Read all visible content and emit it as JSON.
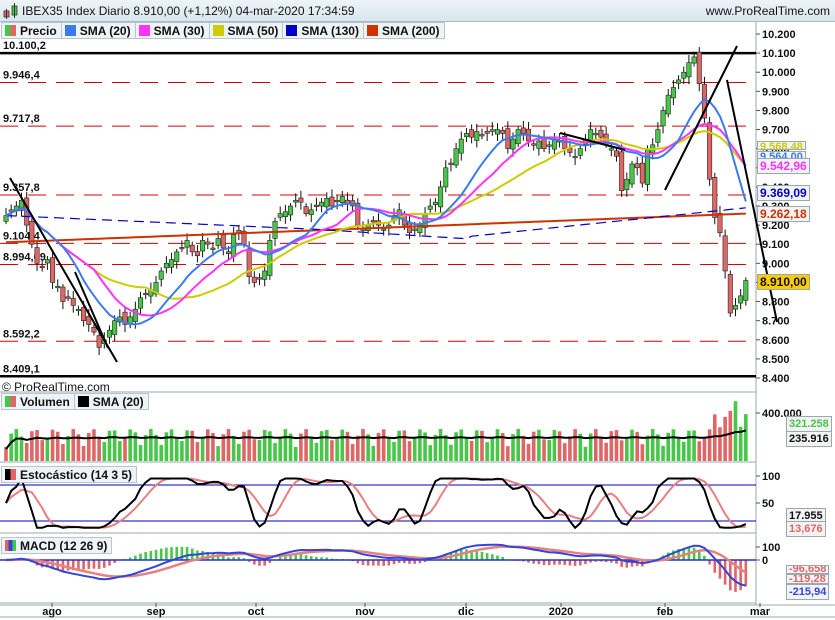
{
  "header": {
    "title": "IBEX35 Index Diario 8.910,00 (+1,12%) 04-mar-2020 17:34:59",
    "site": "www.ProRealTime.com"
  },
  "price_legend": [
    {
      "label": "Precio",
      "color": "split"
    },
    {
      "label": "SMA (20)",
      "color": "#3b7bf0"
    },
    {
      "label": "SMA (30)",
      "color": "#ff33ff"
    },
    {
      "label": "SMA (50)",
      "color": "#cccc00"
    },
    {
      "label": "SMA (130)",
      "color": "#0000cc"
    },
    {
      "label": "SMA (200)",
      "color": "#cc3300"
    }
  ],
  "copyright": "© ProRealTime.com",
  "volume_legend": [
    {
      "label": "Volumen",
      "color": "split"
    },
    {
      "label": "SMA (20)",
      "color": "#000000"
    }
  ],
  "stoch_legend": {
    "label": "Estocástico (14 3 5)"
  },
  "macd_legend": {
    "label": "MACD (12 26 9)"
  },
  "badges": {
    "last_price": "8.910,00",
    "sma50": "9.568,48",
    "sma20": "9.564,00",
    "sma30": "9.542,96",
    "sma130": "9.369,09",
    "sma200": "9.262,18",
    "volume": "321.258",
    "volume_sma": "235.916",
    "stoch_k": "17.955",
    "stoch_d": "13,676",
    "macd_hist": "-96,658",
    "macd_signal": "-119,28",
    "macd": "-215,94"
  },
  "chart_data": [
    {
      "type": "candlestick",
      "title": "IBEX35 Index Diario",
      "ylim": [
        8400,
        10200
      ],
      "y_ticks": [
        "10.200",
        "10.100",
        "10.000",
        "9.900",
        "9.800",
        "9.700",
        "9.600",
        "9.500",
        "9.400",
        "9.300",
        "9.200",
        "9.100",
        "9.000",
        "8.900",
        "8.800",
        "8.700",
        "8.600",
        "8.500",
        "8.400"
      ],
      "x_ticks": [
        "ago",
        "sep",
        "oct",
        "nov",
        "dic",
        "2020",
        "feb",
        "mar"
      ],
      "horizontal_levels": [
        {
          "label": "10.100,2",
          "value": 10100.2,
          "style": "solid-black"
        },
        {
          "label": "9.946,4",
          "value": 9946.4,
          "style": "dashed-red"
        },
        {
          "label": "9.717,8",
          "value": 9717.8,
          "style": "dashed-red"
        },
        {
          "label": "9.357,8",
          "value": 9357.8,
          "style": "dashed-red"
        },
        {
          "label": "9.104,4",
          "value": 9104.4,
          "style": "dashed-red"
        },
        {
          "label": "8.994,09",
          "value": 8994.09,
          "style": "dashed-red"
        },
        {
          "label": "8.592,2",
          "value": 8592.2,
          "style": "dashed-red"
        },
        {
          "label": "8.409,1",
          "value": 8409.1,
          "style": "solid-black"
        }
      ],
      "close_series": [
        9250,
        9280,
        9300,
        9330,
        9200,
        9100,
        9000,
        8980,
        9020,
        8900,
        8880,
        8800,
        8820,
        8780,
        8760,
        8700,
        8680,
        8640,
        8560,
        8600,
        8650,
        8700,
        8720,
        8680,
        8720,
        8760,
        8820,
        8840,
        8860,
        8900,
        8960,
        9000,
        9020,
        9060,
        9080,
        9120,
        9060,
        9040,
        9120,
        9100,
        9080,
        9130,
        9080,
        9050,
        9150,
        9160,
        9100,
        8930,
        8900,
        8920,
        8960,
        9120,
        9220,
        9260,
        9270,
        9300,
        9330,
        9320,
        9260,
        9280,
        9300,
        9320,
        9340,
        9300,
        9330,
        9350,
        9310,
        9300,
        9200,
        9180,
        9200,
        9220,
        9200,
        9180,
        9200,
        9250,
        9280,
        9200,
        9160,
        9180,
        9200,
        9260,
        9300,
        9320,
        9400,
        9500,
        9520,
        9600,
        9650,
        9680,
        9660,
        9690,
        9670,
        9680,
        9700,
        9700,
        9680,
        9600,
        9650,
        9700,
        9680,
        9640,
        9620,
        9640,
        9600,
        9620,
        9650,
        9640,
        9600,
        9580,
        9560,
        9600,
        9650,
        9700,
        9680,
        9660,
        9620,
        9600,
        9560,
        9380,
        9440,
        9520,
        9500,
        9420,
        9600,
        9620,
        9700,
        9800,
        9880,
        9920,
        9960,
        10000,
        10050,
        10080,
        9940,
        9760,
        9440,
        9240,
        9160,
        8960,
        8740,
        8780,
        8830,
        8910
      ],
      "sma20": [
        9350,
        9340,
        9330,
        9320,
        9290,
        9250,
        9200,
        9150,
        9100,
        9050,
        9000,
        8950,
        8900,
        8860,
        8820,
        8780,
        8760,
        8740,
        8730,
        8720,
        8720,
        8730,
        8740,
        8750,
        8770,
        8800,
        8830,
        8860,
        8890,
        8920,
        8950,
        8980,
        9000,
        9020,
        9040,
        9050,
        9055,
        9050,
        9045,
        9040,
        9030,
        9020,
        9010,
        9000,
        8990,
        8985,
        8990,
        9000,
        9010,
        9030,
        9050,
        9080,
        9110,
        9140,
        9170,
        9200,
        9230,
        9250,
        9270,
        9280,
        9290,
        9295,
        9295,
        9290,
        9280,
        9270,
        9260,
        9250,
        9245,
        9240,
        9235,
        9235,
        9240,
        9245,
        9250,
        9260,
        9280,
        9310,
        9340,
        9380,
        9420,
        9460,
        9500,
        9540,
        9570,
        9600,
        9620,
        9640,
        9650,
        9660,
        9665,
        9660,
        9660,
        9650,
        9650,
        9650,
        9650,
        9640,
        9640,
        9640,
        9650,
        9645,
        9640,
        9635,
        9630,
        9625,
        9620,
        9615,
        9610,
        9600,
        9590,
        9600,
        9610,
        9630,
        9660,
        9690,
        9720,
        9750,
        9760,
        9740,
        9700,
        9650,
        9600,
        9564
      ],
      "sma30_end": 9542.96,
      "sma50_end": 9568.48,
      "sma130_end": 9369.09,
      "sma200_end": 9262.18
    },
    {
      "type": "bar+line",
      "title": "Volumen",
      "series": [
        {
          "name": "Volumen"
        },
        {
          "name": "SMA (20)"
        }
      ],
      "y_ticks": [
        "400.000"
      ],
      "last_values": {
        "volume": 321258,
        "sma20": 235916
      }
    },
    {
      "type": "line",
      "title": "Estocástico (14 3 5)",
      "y_ticks": [
        "100",
        "50"
      ],
      "levels": [
        80,
        20
      ],
      "last_values": {
        "k": 17.955,
        "d": 13.676
      }
    },
    {
      "type": "line+histogram",
      "title": "MACD (12 26 9)",
      "y_ticks": [
        "100",
        "0"
      ],
      "last_values": {
        "histogram": -96.658,
        "signal": -119.28,
        "macd": -215.94
      }
    }
  ]
}
